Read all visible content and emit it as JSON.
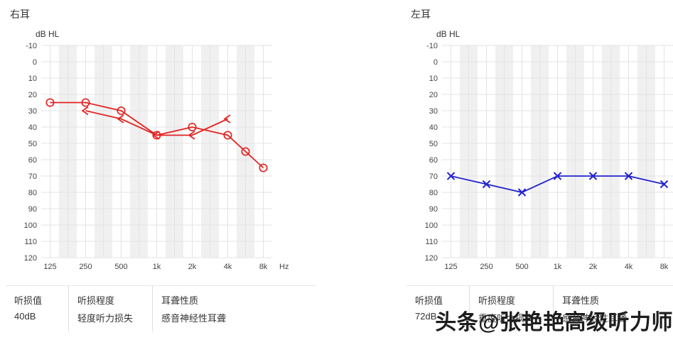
{
  "watermark": {
    "text": "头条@张艳艳高级听力师"
  },
  "axis": {
    "y_label": "dB HL",
    "x_label": "Hz",
    "y_ticks": [
      -10,
      0,
      10,
      20,
      30,
      40,
      50,
      60,
      70,
      80,
      90,
      100,
      110,
      120
    ],
    "x_tick_labels": [
      "125",
      "250",
      "500",
      "1k",
      "2k",
      "4k",
      "8k"
    ],
    "x_tick_freqs": [
      125,
      250,
      500,
      1000,
      2000,
      4000,
      8000
    ]
  },
  "chart_data": [
    {
      "type": "line",
      "title": "右耳",
      "xlabel": "Hz",
      "ylabel": "dB HL",
      "ylim": [
        -10,
        120
      ],
      "y_inverted": true,
      "grid": true,
      "color": "#e32222",
      "series": [
        {
          "name": "air-conduction",
          "marker": "circle",
          "points": [
            [
              125,
              25
            ],
            [
              250,
              25
            ],
            [
              500,
              30
            ],
            [
              1000,
              45
            ],
            [
              2000,
              40
            ],
            [
              4000,
              45
            ],
            [
              6000,
              55
            ],
            [
              8000,
              65
            ]
          ]
        },
        {
          "name": "bone-conduction",
          "marker": "arrow-left",
          "points": [
            [
              250,
              30
            ],
            [
              500,
              35
            ],
            [
              1000,
              45
            ],
            [
              2000,
              45
            ],
            [
              4000,
              35
            ]
          ]
        }
      ],
      "table": {
        "headers": [
          "听损值",
          "听损程度",
          "耳聋性质"
        ],
        "values": [
          "40dB",
          "轻度听力损失",
          "感音神经性耳聋"
        ]
      }
    },
    {
      "type": "line",
      "title": "左耳",
      "xlabel": "Hz",
      "ylabel": "dB HL",
      "ylim": [
        -10,
        120
      ],
      "y_inverted": true,
      "grid": true,
      "color": "#2323cc",
      "series": [
        {
          "name": "air-conduction",
          "marker": "x",
          "points": [
            [
              125,
              70
            ],
            [
              250,
              75
            ],
            [
              500,
              80
            ],
            [
              1000,
              70
            ],
            [
              2000,
              70
            ],
            [
              4000,
              70
            ],
            [
              8000,
              75
            ]
          ]
        }
      ],
      "table": {
        "headers": [
          "听损值",
          "听损程度",
          "耳聋性质"
        ],
        "values": [
          "72dB",
          "重度听力损失",
          "感音神经性耳聋"
        ]
      }
    }
  ]
}
